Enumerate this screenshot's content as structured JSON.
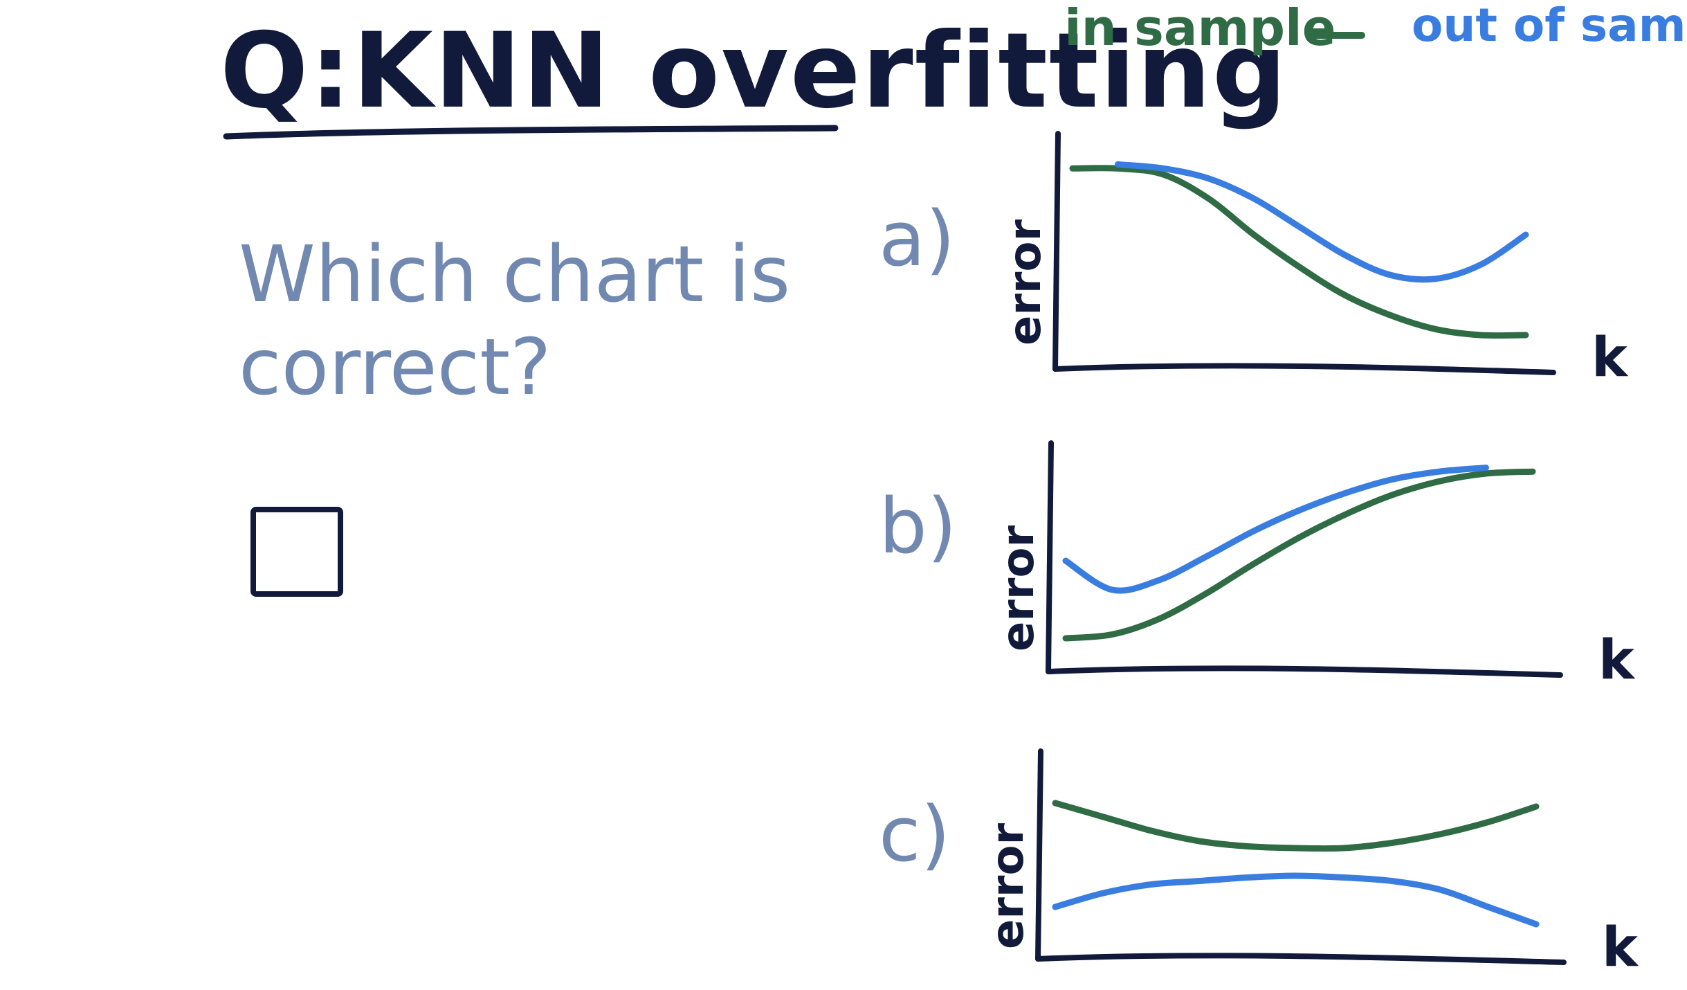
{
  "page": {
    "title": "Q:KNN overfitting",
    "question": "Which chart is correct?",
    "legend": {
      "in_sample": "in sample",
      "out_of_sample": "out of sample"
    }
  },
  "colors": {
    "in_sample": "#2f6b44",
    "out_of_sample": "#3a7de0",
    "ink": "#111a3a",
    "question": "#7188b0"
  },
  "chart_data": [
    {
      "type": "line",
      "label": "a)",
      "xlabel": "k",
      "ylabel": "error",
      "x": [
        0,
        0.1,
        0.2,
        0.3,
        0.4,
        0.5,
        0.6,
        0.7,
        0.8,
        0.9,
        1.0
      ],
      "series": [
        {
          "name": "in sample",
          "values": [
            0.93,
            0.93,
            0.9,
            0.78,
            0.6,
            0.44,
            0.3,
            0.2,
            0.13,
            0.1,
            0.1
          ]
        },
        {
          "name": "out of sample",
          "values": [
            null,
            0.95,
            0.93,
            0.88,
            0.78,
            0.64,
            0.5,
            0.4,
            0.38,
            0.45,
            0.6
          ]
        }
      ],
      "xlim": [
        0,
        1
      ],
      "ylim": [
        0,
        1
      ],
      "grid": false
    },
    {
      "type": "line",
      "label": "b)",
      "xlabel": "k",
      "ylabel": "error",
      "x": [
        0,
        0.1,
        0.2,
        0.3,
        0.4,
        0.5,
        0.6,
        0.7,
        0.8,
        0.9,
        1.0
      ],
      "series": [
        {
          "name": "in sample",
          "values": [
            0.1,
            0.12,
            0.2,
            0.33,
            0.48,
            0.62,
            0.74,
            0.84,
            0.91,
            0.95,
            0.96
          ]
        },
        {
          "name": "out of sample",
          "values": [
            0.5,
            0.35,
            0.4,
            0.52,
            0.65,
            0.76,
            0.85,
            0.92,
            0.96,
            0.98,
            null
          ]
        }
      ],
      "xlim": [
        0,
        1
      ],
      "ylim": [
        0,
        1
      ],
      "grid": false
    },
    {
      "type": "line",
      "label": "c)",
      "xlabel": "k",
      "ylabel": "error",
      "x": [
        0,
        0.1,
        0.2,
        0.3,
        0.4,
        0.5,
        0.6,
        0.7,
        0.8,
        0.9,
        1.0
      ],
      "series": [
        {
          "name": "in sample",
          "values": [
            0.82,
            0.74,
            0.66,
            0.6,
            0.57,
            0.56,
            0.56,
            0.59,
            0.64,
            0.71,
            0.8
          ]
        },
        {
          "name": "out of sample",
          "values": [
            0.22,
            0.3,
            0.35,
            0.37,
            0.39,
            0.4,
            0.39,
            0.37,
            0.32,
            0.22,
            0.12
          ]
        }
      ],
      "xlim": [
        0,
        1
      ],
      "ylim": [
        0,
        1
      ],
      "grid": false
    }
  ]
}
